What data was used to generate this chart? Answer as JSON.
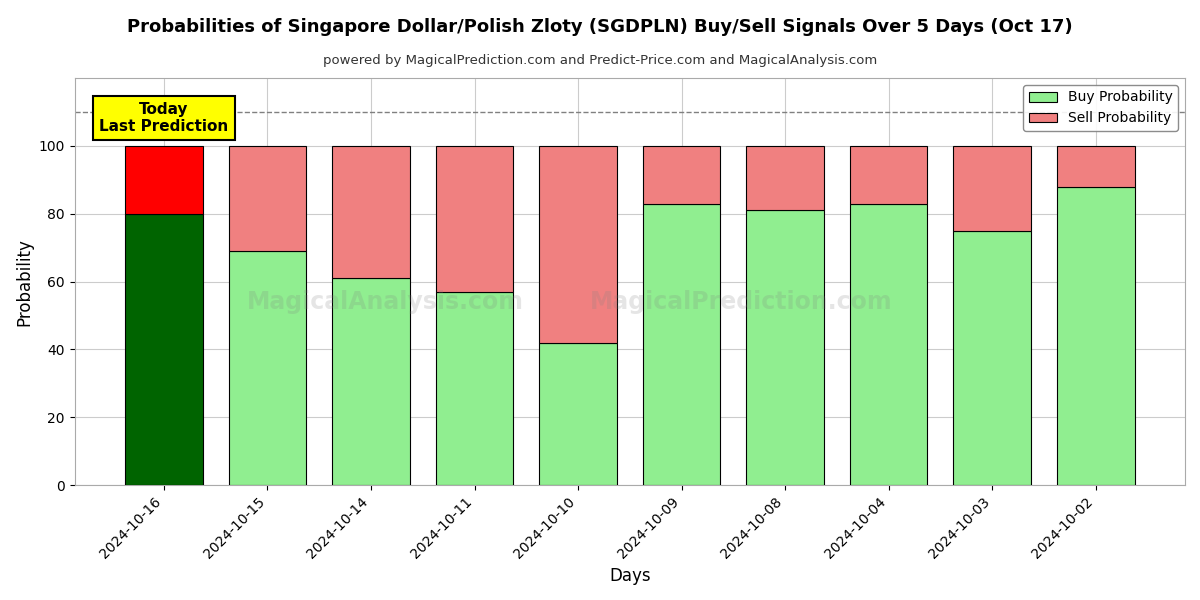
{
  "title": "Probabilities of Singapore Dollar/Polish Zloty (SGDPLN) Buy/Sell Signals Over 5 Days (Oct 17)",
  "subtitle": "powered by MagicalPrediction.com and Predict-Price.com and MagicalAnalysis.com",
  "xlabel": "Days",
  "ylabel": "Probability",
  "dates": [
    "2024-10-16",
    "2024-10-15",
    "2024-10-14",
    "2024-10-11",
    "2024-10-10",
    "2024-10-09",
    "2024-10-08",
    "2024-10-04",
    "2024-10-03",
    "2024-10-02"
  ],
  "buy_values": [
    80,
    69,
    61,
    57,
    42,
    83,
    81,
    83,
    75,
    88
  ],
  "sell_values": [
    20,
    31,
    39,
    43,
    58,
    17,
    19,
    17,
    25,
    12
  ],
  "buy_colors": [
    "#006400",
    "#90EE90",
    "#90EE90",
    "#90EE90",
    "#90EE90",
    "#90EE90",
    "#90EE90",
    "#90EE90",
    "#90EE90",
    "#90EE90"
  ],
  "sell_colors": [
    "#FF0000",
    "#F08080",
    "#F08080",
    "#F08080",
    "#F08080",
    "#F08080",
    "#F08080",
    "#F08080",
    "#F08080",
    "#F08080"
  ],
  "today_label": "Today\nLast Prediction",
  "today_box_color": "#FFFF00",
  "legend_buy_color": "#90EE90",
  "legend_sell_color": "#F08080",
  "ylim": [
    0,
    120
  ],
  "yticks": [
    0,
    20,
    40,
    60,
    80,
    100
  ],
  "dashed_line_y": 110,
  "background_color": "#ffffff",
  "grid_color": "#cccccc",
  "bar_width": 0.75
}
